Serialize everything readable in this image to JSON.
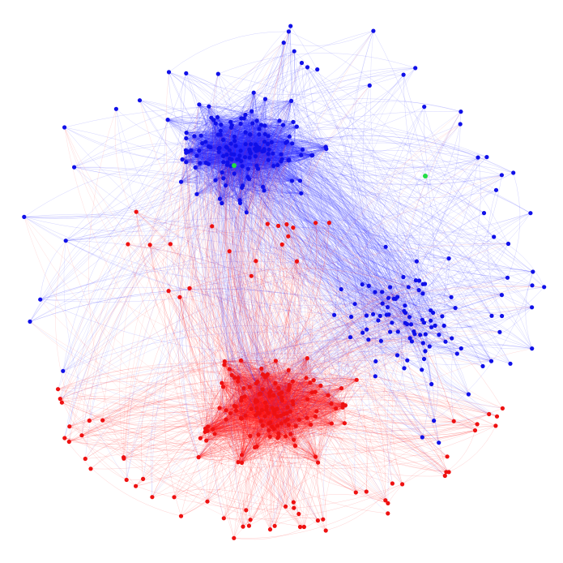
{
  "graph": {
    "type": "network",
    "node_count_shown": 470,
    "communities": [
      {
        "name": "",
        "color": "#1010e8",
        "edge_color": "#2a2aff"
      },
      {
        "name": "",
        "color": "#ee1111",
        "edge_color": "#ff1a1a"
      }
    ],
    "highlight_color": "#22dd44",
    "highlighted_nodes": 2
  }
}
